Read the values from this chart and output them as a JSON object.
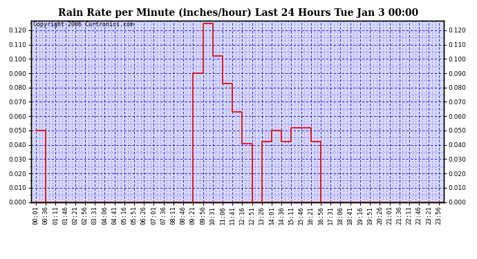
{
  "title": "Rain Rate per Minute (inches/hour) Last 24 Hours Tue Jan 3 00:00",
  "copyright": "Copyright 2006 Curtronics.com",
  "bg_color": "#ffffff",
  "plot_bg_color": "#d8d8ff",
  "line_color": "#dd0000",
  "grid_major_color": "#0000cc",
  "grid_minor_color": "#4444dd",
  "ylim": [
    0.0,
    0.1267
  ],
  "ytick_vals": [
    0.0,
    0.01,
    0.02,
    0.03,
    0.04,
    0.05,
    0.06,
    0.07,
    0.08,
    0.09,
    0.1,
    0.11,
    0.12
  ],
  "time_labels": [
    "00:01",
    "00:36",
    "01:11",
    "01:46",
    "02:21",
    "02:56",
    "03:31",
    "04:06",
    "04:41",
    "05:16",
    "05:51",
    "06:26",
    "07:01",
    "07:36",
    "08:11",
    "08:46",
    "09:21",
    "09:56",
    "10:31",
    "11:06",
    "11:41",
    "12:16",
    "12:51",
    "13:26",
    "14:01",
    "14:36",
    "15:11",
    "15:46",
    "16:21",
    "16:56",
    "17:31",
    "18:06",
    "18:41",
    "19:16",
    "19:51",
    "20:26",
    "21:01",
    "21:36",
    "22:11",
    "22:46",
    "23:21",
    "23:56"
  ],
  "rain_data": [
    0.05,
    0.0,
    0.0,
    0.0,
    0.0,
    0.0,
    0.0,
    0.0,
    0.0,
    0.0,
    0.0,
    0.0,
    0.0,
    0.0,
    0.0,
    0.0,
    0.09,
    0.125,
    0.102,
    0.083,
    0.063,
    0.041,
    0.0,
    0.042,
    0.05,
    0.042,
    0.052,
    0.052,
    0.042,
    0.0,
    0.0,
    0.0,
    0.0,
    0.0,
    0.0,
    0.0,
    0.0,
    0.0,
    0.0,
    0.0,
    0.0,
    0.0
  ],
  "title_fontsize": 10,
  "tick_labelsize": 6.5,
  "copyright_fontsize": 6
}
